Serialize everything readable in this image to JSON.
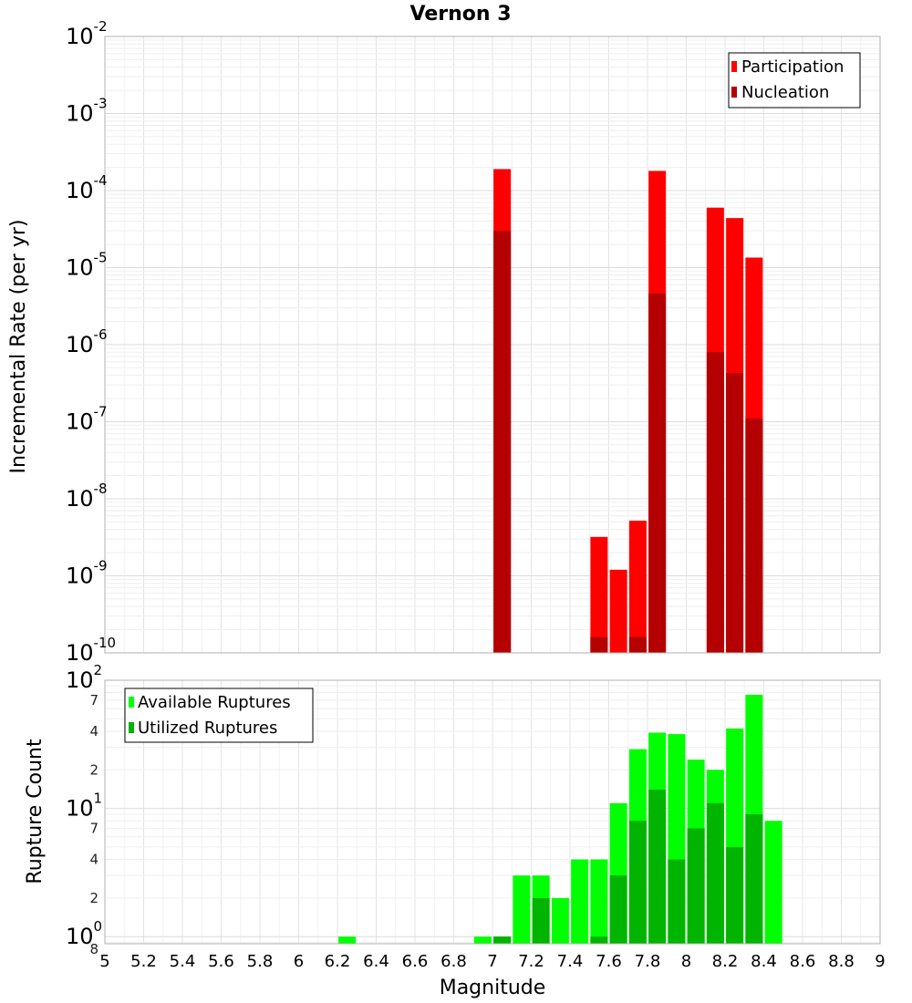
{
  "chart_data": [
    {
      "type": "bar",
      "title": "Vernon 3",
      "ylabel": "Incremental Rate (per yr)",
      "yscale": "log",
      "ylim": [
        1e-10,
        0.01
      ],
      "xlim": [
        5,
        9
      ],
      "grid": true,
      "legend_position": "top-right",
      "y_ticks": [
        {
          "base": "10",
          "exp": "-10"
        },
        {
          "base": "10",
          "exp": "-9"
        },
        {
          "base": "10",
          "exp": "-8"
        },
        {
          "base": "10",
          "exp": "-7"
        },
        {
          "base": "10",
          "exp": "-6"
        },
        {
          "base": "10",
          "exp": "-5"
        },
        {
          "base": "10",
          "exp": "-4"
        },
        {
          "base": "10",
          "exp": "-3"
        },
        {
          "base": "10",
          "exp": "-2"
        }
      ],
      "series": [
        {
          "name": "Participation",
          "color": "#ff0000",
          "x": [
            7.05,
            7.55,
            7.65,
            7.75,
            7.85,
            8.15,
            8.25,
            8.35
          ],
          "values": [
            0.00019,
            3.2e-09,
            1.2e-09,
            5.2e-09,
            0.00018,
            6e-05,
            4.4e-05,
            1.35e-05
          ]
        },
        {
          "name": "Nucleation",
          "color": "#b40000",
          "x": [
            7.05,
            7.55,
            7.75,
            7.85,
            8.15,
            8.25,
            8.35
          ],
          "values": [
            3e-05,
            1.6e-10,
            1.6e-10,
            4.6e-06,
            8e-07,
            4.3e-07,
            1.1e-07
          ]
        }
      ]
    },
    {
      "type": "bar",
      "xlabel": "Magnitude",
      "ylabel": "Rupture Count",
      "yscale": "log",
      "ylim": [
        0.88,
        100
      ],
      "xlim": [
        5,
        9
      ],
      "grid": true,
      "legend_position": "top-left",
      "x_ticks": [
        "5",
        "5.2",
        "5.4",
        "5.6",
        "5.8",
        "6",
        "6.2",
        "6.4",
        "6.6",
        "6.8",
        "7",
        "7.2",
        "7.4",
        "7.6",
        "7.8",
        "8",
        "8.2",
        "8.4",
        "8.6",
        "8.8",
        "9"
      ],
      "y_major_ticks": [
        {
          "value": 1,
          "base": "10",
          "exp": "0"
        },
        {
          "value": 10,
          "base": "10",
          "exp": "1"
        },
        {
          "value": 100,
          "base": "10",
          "exp": "2"
        }
      ],
      "y_minor_labels": [
        {
          "value": 0.8,
          "label": "8"
        },
        {
          "value": 2,
          "label": "2"
        },
        {
          "value": 4,
          "label": "4"
        },
        {
          "value": 7,
          "label": "7"
        },
        {
          "value": 20,
          "label": "2"
        },
        {
          "value": 40,
          "label": "4"
        },
        {
          "value": 70,
          "label": "7"
        }
      ],
      "series": [
        {
          "name": "Available Ruptures",
          "color": "#00ff00",
          "x": [
            6.25,
            6.95,
            7.05,
            7.15,
            7.25,
            7.35,
            7.45,
            7.55,
            7.65,
            7.75,
            7.85,
            7.95,
            8.05,
            8.15,
            8.25,
            8.35,
            8.45
          ],
          "values": [
            1,
            1,
            1,
            3,
            3,
            2,
            4,
            4,
            11,
            29,
            39,
            38,
            24,
            20,
            42,
            77,
            8
          ]
        },
        {
          "name": "Utilized Ruptures",
          "color": "#00b400",
          "x": [
            7.05,
            7.25,
            7.55,
            7.65,
            7.75,
            7.85,
            7.95,
            8.05,
            8.15,
            8.25,
            8.35
          ],
          "values": [
            1,
            2,
            1,
            3,
            8,
            14,
            4,
            7,
            11,
            5,
            9
          ]
        }
      ]
    }
  ]
}
